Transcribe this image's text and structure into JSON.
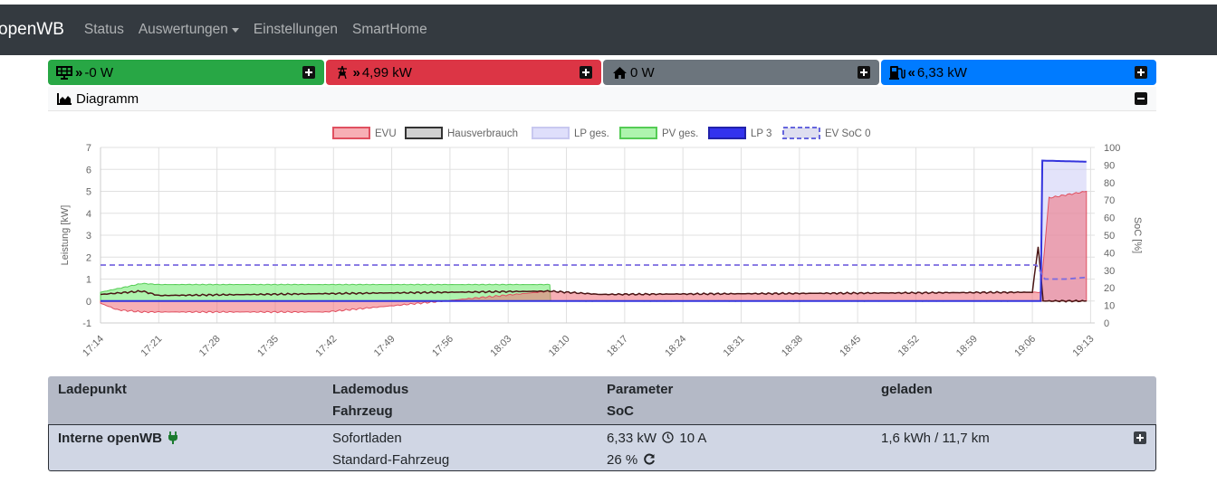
{
  "navbar": {
    "brand": "openWB",
    "items": [
      {
        "label": "Status"
      },
      {
        "label": "Auswertungen",
        "dropdown": true
      },
      {
        "label": "Einstellungen"
      },
      {
        "label": "SmartHome"
      }
    ]
  },
  "tiles": [
    {
      "value": "-0 W",
      "color": "#28a745",
      "icon": "solar-panel-icon",
      "arrow": "»"
    },
    {
      "value": "4,99 kW",
      "color": "#dc3545",
      "icon": "power-tower-icon",
      "arrow": "»"
    },
    {
      "value": "0 W",
      "color": "#6c757d",
      "icon": "home-icon",
      "arrow": ""
    },
    {
      "value": "6,33 kW",
      "color": "#007bff",
      "icon": "charging-station-icon",
      "arrow": "«"
    }
  ],
  "diagram": {
    "title": "Diagramm"
  },
  "table": {
    "headers": {
      "ladepunkt": "Ladepunkt",
      "lademodus": "Lademodus",
      "fahrzeug": "Fahrzeug",
      "parameter": "Parameter",
      "soc": "SoC",
      "geladen": "geladen"
    },
    "row": {
      "ladepunkt": "Interne openWB",
      "lademodus": "Sofortladen",
      "fahrzeug": "Standard-Fahrzeug",
      "power": "6,33 kW",
      "current": "10 A",
      "soc": "26 %",
      "geladen": "1,6 kWh / 11,7 km"
    }
  },
  "chart_data": {
    "type": "area",
    "legend": [
      "EVU",
      "Hausverbrauch",
      "LP ges.",
      "PV ges.",
      "LP 3",
      "EV SoC 0"
    ],
    "legend_placement": "top",
    "ylabel": "Leistung [kW]",
    "y2label": "SoC [%]",
    "ylim": [
      -1,
      7
    ],
    "y2lim": [
      0,
      100
    ],
    "yticks": [
      "-1",
      "0",
      "1",
      "2",
      "3",
      "4",
      "5",
      "6",
      "7"
    ],
    "y2ticks": [
      "0",
      "10",
      "20",
      "30",
      "40",
      "50",
      "60",
      "70",
      "80",
      "90",
      "100"
    ],
    "xticks": [
      "17:14",
      "17:21",
      "17:28",
      "17:35",
      "17:42",
      "17:49",
      "17:56",
      "18:03",
      "18:10",
      "18:17",
      "18:24",
      "18:31",
      "18:38",
      "18:45",
      "18:52",
      "18:59",
      "19:06",
      "19:13"
    ],
    "grid": true,
    "series": [
      {
        "name": "EVU",
        "x": [
          0,
          2,
          5,
          7,
          20,
          27,
          54,
          60,
          113,
          114,
          118.5
        ],
        "y": [
          -0.1,
          -0.4,
          -0.5,
          -0.5,
          -0.5,
          -0.5,
          0.45,
          0.3,
          0.4,
          4.7,
          5.0
        ]
      },
      {
        "name": "Hausverbrauch",
        "x": [
          0,
          5,
          7,
          54,
          60,
          112,
          112.7,
          113.3,
          118.5
        ],
        "y": [
          0.3,
          0.45,
          0.25,
          0.45,
          0.3,
          0.4,
          2.5,
          0.0,
          0.0
        ]
      },
      {
        "name": "LP ges.",
        "x": [
          0,
          113,
          113.2,
          118.5
        ],
        "y": [
          0,
          0,
          6.4,
          6.35
        ]
      },
      {
        "name": "PV ges.",
        "x": [
          0,
          5,
          7,
          54,
          54.1,
          118.5
        ],
        "y": [
          0.4,
          0.8,
          0.75,
          0.75,
          0,
          0
        ]
      },
      {
        "name": "LP 3",
        "x": [
          0,
          113,
          113.2,
          118.5
        ],
        "y": [
          0,
          0,
          6.4,
          6.35
        ]
      },
      {
        "name": "EV SoC 0",
        "x": [
          0,
          112.5,
          113.5,
          116,
          118.5
        ],
        "y": [
          33,
          33,
          25,
          25,
          26
        ]
      }
    ]
  }
}
